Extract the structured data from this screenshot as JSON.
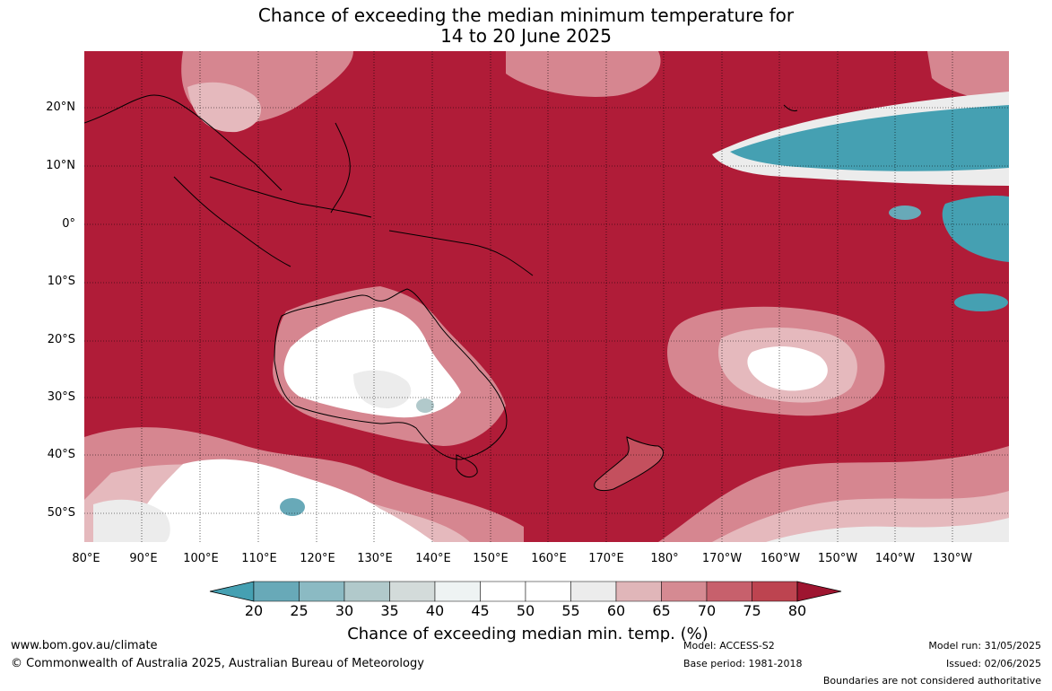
{
  "title": {
    "line1": "Chance of exceeding the median minimum temperature for",
    "line2": "14 to 20 June 2025"
  },
  "map": {
    "lat_labels": [
      "20°N",
      "10°N",
      "0°",
      "10°S",
      "20°S",
      "30°S",
      "40°S",
      "50°S"
    ],
    "lon_labels": [
      "80°E",
      "90°E",
      "100°E",
      "110°E",
      "120°E",
      "130°E",
      "140°E",
      "150°E",
      "160°E",
      "170°E",
      "180°",
      "170°W",
      "160°W",
      "150°W",
      "140°W",
      "130°W"
    ],
    "colors": {
      "high": "#b01c38",
      "above": "#c4505e",
      "moderate": "#d68690",
      "light": "#e5b9bd",
      "neutral": "#ffffff",
      "neutral_grey": "#ececec",
      "low": "#45a0b2",
      "land_border": "#000000",
      "grid": "#000000"
    }
  },
  "colorbar": {
    "ticks": [
      "20",
      "25",
      "30",
      "35",
      "40",
      "45",
      "50",
      "55",
      "60",
      "65",
      "70",
      "75",
      "80"
    ],
    "colors": [
      "#45a0b2",
      "#68a9b8",
      "#8bbac3",
      "#b1c9cb",
      "#d3dbda",
      "#eef3f3",
      "#ffffff",
      "#ffffff",
      "#ececec",
      "#e0b6b9",
      "#d58a92",
      "#c7606c",
      "#bd4450",
      "#b01c38",
      "#9e1530"
    ],
    "label": "Chance of exceeding median min. temp. (%)"
  },
  "footer": {
    "website": "www.bom.gov.au/climate",
    "copyright": "© Commonwealth of Australia 2025, Australian Bureau of Meteorology",
    "model": "Model: ACCESS-S2",
    "base_period": "Base period: 1981-2018",
    "model_run": "Model run: 31/05/2025",
    "issued": "Issued: 02/06/2025",
    "disclaimer": "Boundaries are not considered authoritative"
  }
}
